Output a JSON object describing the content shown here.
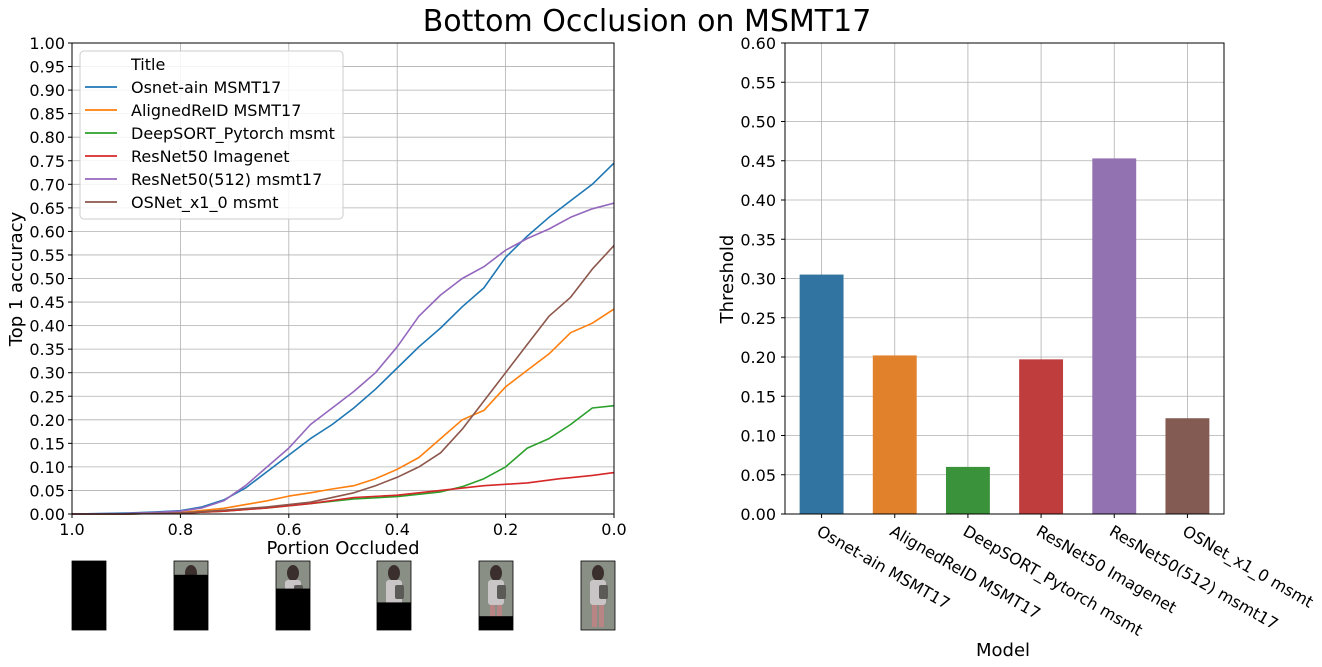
{
  "figure": {
    "title": "Bottom Occlusion on MSMT17"
  },
  "chart_data": [
    {
      "type": "line",
      "xlabel": "Portion Occluded",
      "ylabel": "Top 1 accuracy",
      "xlim": [
        1.0,
        0.0
      ],
      "ylim": [
        0.0,
        1.0
      ],
      "x_ticks": [
        "1.0",
        "0.8",
        "0.6",
        "0.4",
        "0.2",
        "0.0"
      ],
      "y_ticks": [
        "0.00",
        "0.05",
        "0.10",
        "0.15",
        "0.20",
        "0.25",
        "0.30",
        "0.35",
        "0.40",
        "0.45",
        "0.50",
        "0.55",
        "0.60",
        "0.65",
        "0.70",
        "0.75",
        "0.80",
        "0.85",
        "0.90",
        "0.95",
        "1.00"
      ],
      "grid": true,
      "legend": {
        "title": "Title",
        "placement": "top-left"
      },
      "series": [
        {
          "name": "Osnet-ain MSMT17",
          "color": "#1f77b4",
          "x": [
            1.0,
            0.9,
            0.85,
            0.8,
            0.76,
            0.72,
            0.68,
            0.64,
            0.6,
            0.56,
            0.52,
            0.48,
            0.44,
            0.4,
            0.36,
            0.32,
            0.28,
            0.24,
            0.2,
            0.16,
            0.12,
            0.08,
            0.04,
            0.0
          ],
          "y": [
            0.0,
            0.002,
            0.004,
            0.007,
            0.015,
            0.03,
            0.055,
            0.09,
            0.125,
            0.16,
            0.19,
            0.225,
            0.265,
            0.31,
            0.355,
            0.395,
            0.44,
            0.48,
            0.545,
            0.59,
            0.63,
            0.665,
            0.7,
            0.745
          ]
        },
        {
          "name": "AlignedReID MSMT17",
          "color": "#ff7f0e",
          "x": [
            1.0,
            0.9,
            0.8,
            0.72,
            0.68,
            0.64,
            0.6,
            0.56,
            0.52,
            0.48,
            0.44,
            0.4,
            0.36,
            0.32,
            0.28,
            0.24,
            0.2,
            0.16,
            0.12,
            0.08,
            0.04,
            0.0
          ],
          "y": [
            0.0,
            0.0,
            0.003,
            0.012,
            0.02,
            0.028,
            0.038,
            0.045,
            0.053,
            0.06,
            0.075,
            0.095,
            0.12,
            0.16,
            0.2,
            0.22,
            0.27,
            0.305,
            0.34,
            0.385,
            0.405,
            0.435
          ]
        },
        {
          "name": "DeepSORT_Pytorch msmt",
          "color": "#2ca02c",
          "x": [
            1.0,
            0.9,
            0.8,
            0.72,
            0.64,
            0.56,
            0.48,
            0.4,
            0.32,
            0.28,
            0.24,
            0.2,
            0.16,
            0.12,
            0.08,
            0.04,
            0.0
          ],
          "y": [
            0.0,
            0.0,
            0.002,
            0.006,
            0.013,
            0.022,
            0.032,
            0.037,
            0.047,
            0.058,
            0.075,
            0.1,
            0.14,
            0.16,
            0.19,
            0.225,
            0.23
          ]
        },
        {
          "name": "ResNet50 Imagenet",
          "color": "#d62728",
          "x": [
            1.0,
            0.9,
            0.8,
            0.72,
            0.64,
            0.56,
            0.48,
            0.4,
            0.32,
            0.24,
            0.16,
            0.1,
            0.08,
            0.04,
            0.0
          ],
          "y": [
            0.0,
            0.0,
            0.002,
            0.006,
            0.013,
            0.022,
            0.035,
            0.04,
            0.05,
            0.06,
            0.066,
            0.075,
            0.077,
            0.082,
            0.088
          ]
        },
        {
          "name": "ResNet50(512) msmt17",
          "color": "#9467bd",
          "x": [
            1.0,
            0.9,
            0.85,
            0.8,
            0.76,
            0.72,
            0.68,
            0.64,
            0.6,
            0.56,
            0.52,
            0.48,
            0.44,
            0.4,
            0.36,
            0.32,
            0.28,
            0.24,
            0.2,
            0.16,
            0.12,
            0.08,
            0.04,
            0.0
          ],
          "y": [
            0.0,
            0.001,
            0.003,
            0.006,
            0.013,
            0.028,
            0.06,
            0.1,
            0.14,
            0.19,
            0.225,
            0.26,
            0.3,
            0.355,
            0.42,
            0.465,
            0.5,
            0.525,
            0.56,
            0.585,
            0.605,
            0.63,
            0.648,
            0.66
          ]
        },
        {
          "name": "OSNet_x1_0 msmt",
          "color": "#8c564b",
          "x": [
            1.0,
            0.9,
            0.8,
            0.72,
            0.64,
            0.56,
            0.48,
            0.44,
            0.4,
            0.36,
            0.32,
            0.28,
            0.24,
            0.2,
            0.16,
            0.12,
            0.08,
            0.04,
            0.0
          ],
          "y": [
            0.0,
            0.0,
            0.002,
            0.008,
            0.015,
            0.025,
            0.045,
            0.06,
            0.078,
            0.1,
            0.13,
            0.18,
            0.24,
            0.3,
            0.36,
            0.42,
            0.46,
            0.52,
            0.57
          ]
        }
      ]
    },
    {
      "type": "bar",
      "xlabel": "Model",
      "ylabel": "Threshold",
      "ylim": [
        0.0,
        0.6
      ],
      "y_ticks": [
        "0.00",
        "0.05",
        "0.10",
        "0.15",
        "0.20",
        "0.25",
        "0.30",
        "0.35",
        "0.40",
        "0.45",
        "0.50",
        "0.55",
        "0.60"
      ],
      "grid": true,
      "categories": [
        "Osnet-ain MSMT17",
        "AlignedReID MSMT17",
        "DeepSORT_Pytorch msmt",
        "ResNet50 Imagenet",
        "ResNet50(512) msmt17",
        "OSNet_x1_0 msmt"
      ],
      "values": [
        0.305,
        0.202,
        0.06,
        0.197,
        0.453,
        0.122
      ],
      "colors": [
        "#3274a1",
        "#e1812c",
        "#3a923a",
        "#c03d3e",
        "#9372b2",
        "#845b53"
      ]
    }
  ],
  "thumbnails": {
    "occlusion_levels": [
      1.0,
      0.8,
      0.6,
      0.4,
      0.2,
      0.0
    ]
  }
}
